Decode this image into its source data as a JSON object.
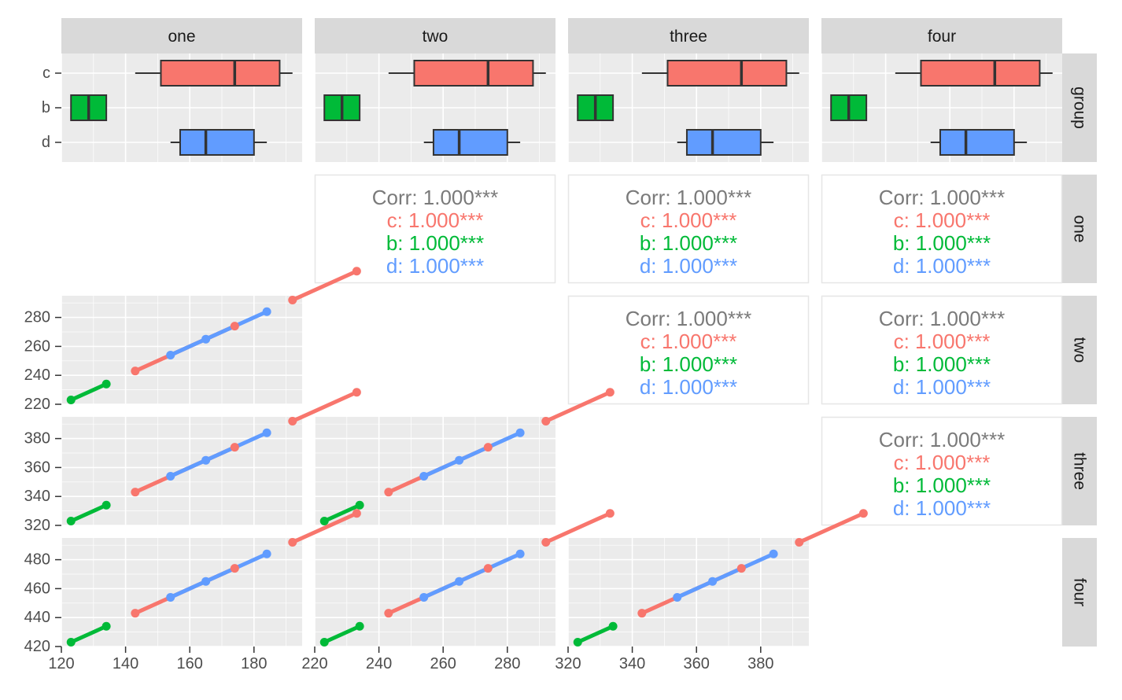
{
  "chart_data": {
    "type": "scatter-matrix",
    "columns": [
      "one",
      "two",
      "three",
      "four"
    ],
    "rows": [
      "group",
      "one",
      "two",
      "three",
      "four"
    ],
    "groups": [
      "c",
      "b",
      "d"
    ],
    "colors": {
      "c": "#F8766D",
      "b": "#00BA38",
      "d": "#619CFF",
      "corr_overall": "#7a7a7a"
    },
    "panel_bg": "#EBEBEB",
    "strip_bg": "#D9D9D9",
    "ranges": {
      "one": [
        120,
        195
      ],
      "two": [
        220,
        295
      ],
      "three": [
        320,
        395
      ],
      "four": [
        420,
        495
      ]
    },
    "x_ticks": {
      "one": [
        120,
        140,
        160,
        180
      ],
      "two": [
        220,
        240,
        260,
        280
      ],
      "three": [
        320,
        340,
        360,
        380
      ],
      "four": [
        420,
        440,
        460,
        480
      ]
    },
    "x_tick_labels": [
      "120",
      "140",
      "160",
      "180",
      "220",
      "240",
      "260",
      "280",
      "320",
      "340",
      "360",
      "380"
    ],
    "y_ticks": {
      "two": [
        220,
        240,
        260,
        280
      ],
      "three": [
        320,
        340,
        360,
        380
      ],
      "four": [
        420,
        440,
        460,
        480
      ]
    },
    "y_tick_labels": {
      "two": [
        "220",
        "240",
        "260",
        "280"
      ],
      "three": [
        "320",
        "340",
        "360",
        "380"
      ],
      "four": [
        "420",
        "440",
        "460",
        "480"
      ]
    },
    "series": [
      {
        "group": "c",
        "points_offset": [
          23,
          54,
          72,
          92
        ]
      },
      {
        "group": "b",
        "points_offset": [
          3,
          14
        ]
      },
      {
        "group": "d",
        "points_offset": [
          34,
          45,
          64
        ]
      }
    ],
    "boxplots": {
      "one": {
        "c": {
          "whisker_lo": 143,
          "q1": 151,
          "median": 174,
          "q3": 188,
          "whisker_hi": 192
        },
        "b": {
          "whisker_lo": 123,
          "q1": 123,
          "median": 128.5,
          "q3": 134,
          "whisker_hi": 134
        },
        "d": {
          "whisker_lo": 154,
          "q1": 157,
          "median": 165,
          "q3": 180,
          "whisker_hi": 184
        }
      },
      "two": {
        "c": {
          "whisker_lo": 243,
          "q1": 251,
          "median": 274,
          "q3": 288,
          "whisker_hi": 292
        },
        "b": {
          "whisker_lo": 223,
          "q1": 223,
          "median": 228.5,
          "q3": 234,
          "whisker_hi": 234
        },
        "d": {
          "whisker_lo": 254,
          "q1": 257,
          "median": 265,
          "q3": 280,
          "whisker_hi": 284
        }
      },
      "three": {
        "c": {
          "whisker_lo": 343,
          "q1": 351,
          "median": 374,
          "q3": 388,
          "whisker_hi": 392
        },
        "b": {
          "whisker_lo": 323,
          "q1": 323,
          "median": 328.5,
          "q3": 334,
          "whisker_hi": 334
        },
        "d": {
          "whisker_lo": 354,
          "q1": 357,
          "median": 365,
          "q3": 380,
          "whisker_hi": 384
        }
      },
      "four": {
        "c": {
          "whisker_lo": 443,
          "q1": 451,
          "median": 474,
          "q3": 488,
          "whisker_hi": 492
        },
        "b": {
          "whisker_lo": 423,
          "q1": 423,
          "median": 428.5,
          "q3": 434,
          "whisker_hi": 434
        },
        "d": {
          "whisker_lo": 454,
          "q1": 457,
          "median": 465,
          "q3": 480,
          "whisker_hi": 484
        }
      }
    },
    "correlations": {
      "overall": "Corr: 1.000***",
      "c": "c: 1.000***",
      "b": "b: 1.000***",
      "d": "d: 1.000***"
    }
  }
}
